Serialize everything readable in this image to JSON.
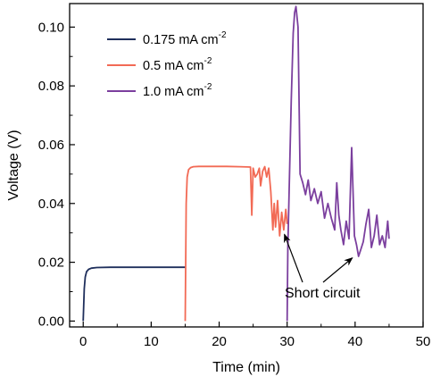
{
  "chart_data": {
    "type": "line",
    "xlabel": "Time (min)",
    "ylabel": "Voltage (V)",
    "xlim": [
      -2,
      50
    ],
    "ylim": [
      -0.002,
      0.108
    ],
    "x_ticks": [
      0,
      10,
      20,
      30,
      40,
      50
    ],
    "x_tick_labels": [
      "0",
      "10",
      "20",
      "30",
      "40",
      "50"
    ],
    "y_ticks": [
      0.0,
      0.02,
      0.04,
      0.06,
      0.08,
      0.1
    ],
    "y_tick_labels": [
      "0.00",
      "0.02",
      "0.04",
      "0.06",
      "0.08",
      "0.10"
    ],
    "grid": false,
    "legend_position": "top-left",
    "series": [
      {
        "name": "0.175 mA cm",
        "name_superscript": "-2",
        "color": "#1f2f5c",
        "x": [
          0,
          0.15,
          0.3,
          0.5,
          0.8,
          1.2,
          2,
          4,
          6,
          8,
          10,
          12,
          14,
          15
        ],
        "y": [
          0.0,
          0.011,
          0.015,
          0.0168,
          0.0176,
          0.018,
          0.0182,
          0.0183,
          0.0183,
          0.0183,
          0.0183,
          0.0183,
          0.0183,
          0.0183
        ]
      },
      {
        "name": "0.5 mA cm",
        "name_superscript": "-2",
        "color": "#f26a55",
        "x": [
          15,
          15.15,
          15.3,
          15.5,
          15.8,
          16.2,
          17,
          19,
          21,
          23,
          24.6,
          24.8,
          25.0,
          25.3,
          25.6,
          25.9,
          26.1,
          26.4,
          26.7,
          27.0,
          27.3,
          27.6,
          27.9,
          28.1,
          28.3,
          28.6,
          28.9,
          29.2,
          29.5,
          29.8,
          30.0
        ],
        "y": [
          0.0,
          0.04,
          0.049,
          0.0515,
          0.0522,
          0.0525,
          0.0526,
          0.0526,
          0.0526,
          0.0525,
          0.0524,
          0.036,
          0.052,
          0.049,
          0.05,
          0.052,
          0.046,
          0.051,
          0.0525,
          0.049,
          0.052,
          0.044,
          0.031,
          0.04,
          0.032,
          0.041,
          0.029,
          0.037,
          0.031,
          0.038,
          0.033
        ]
      },
      {
        "name": "1.0 mA cm",
        "name_superscript": "-2",
        "color": "#7b3f9e",
        "x": [
          30,
          30.1,
          30.3,
          30.6,
          30.9,
          31.1,
          31.3,
          31.6,
          31.9,
          32.3,
          32.7,
          33.1,
          33.5,
          34.0,
          34.5,
          35.0,
          35.5,
          36.0,
          36.5,
          37.0,
          37.3,
          37.6,
          37.9,
          38.3,
          38.7,
          39.1,
          39.5,
          39.9,
          40.2,
          40.5,
          40.8,
          41.2,
          41.6,
          42.0,
          42.4,
          42.8,
          43.2,
          43.6,
          44.0,
          44.4,
          44.8,
          45.0
        ],
        "y": [
          0.0,
          0.025,
          0.045,
          0.075,
          0.098,
          0.105,
          0.107,
          0.1,
          0.05,
          0.047,
          0.043,
          0.048,
          0.041,
          0.045,
          0.04,
          0.044,
          0.035,
          0.04,
          0.035,
          0.031,
          0.047,
          0.036,
          0.031,
          0.026,
          0.034,
          0.028,
          0.059,
          0.029,
          0.026,
          0.022,
          0.024,
          0.027,
          0.033,
          0.038,
          0.025,
          0.029,
          0.036,
          0.026,
          0.029,
          0.025,
          0.034,
          0.028
        ]
      }
    ],
    "annotations": [
      {
        "text": "Short circuit",
        "arrow_targets": [
          [
            29.6,
            0.0295
          ],
          [
            39.6,
            0.0215
          ]
        ]
      }
    ]
  }
}
